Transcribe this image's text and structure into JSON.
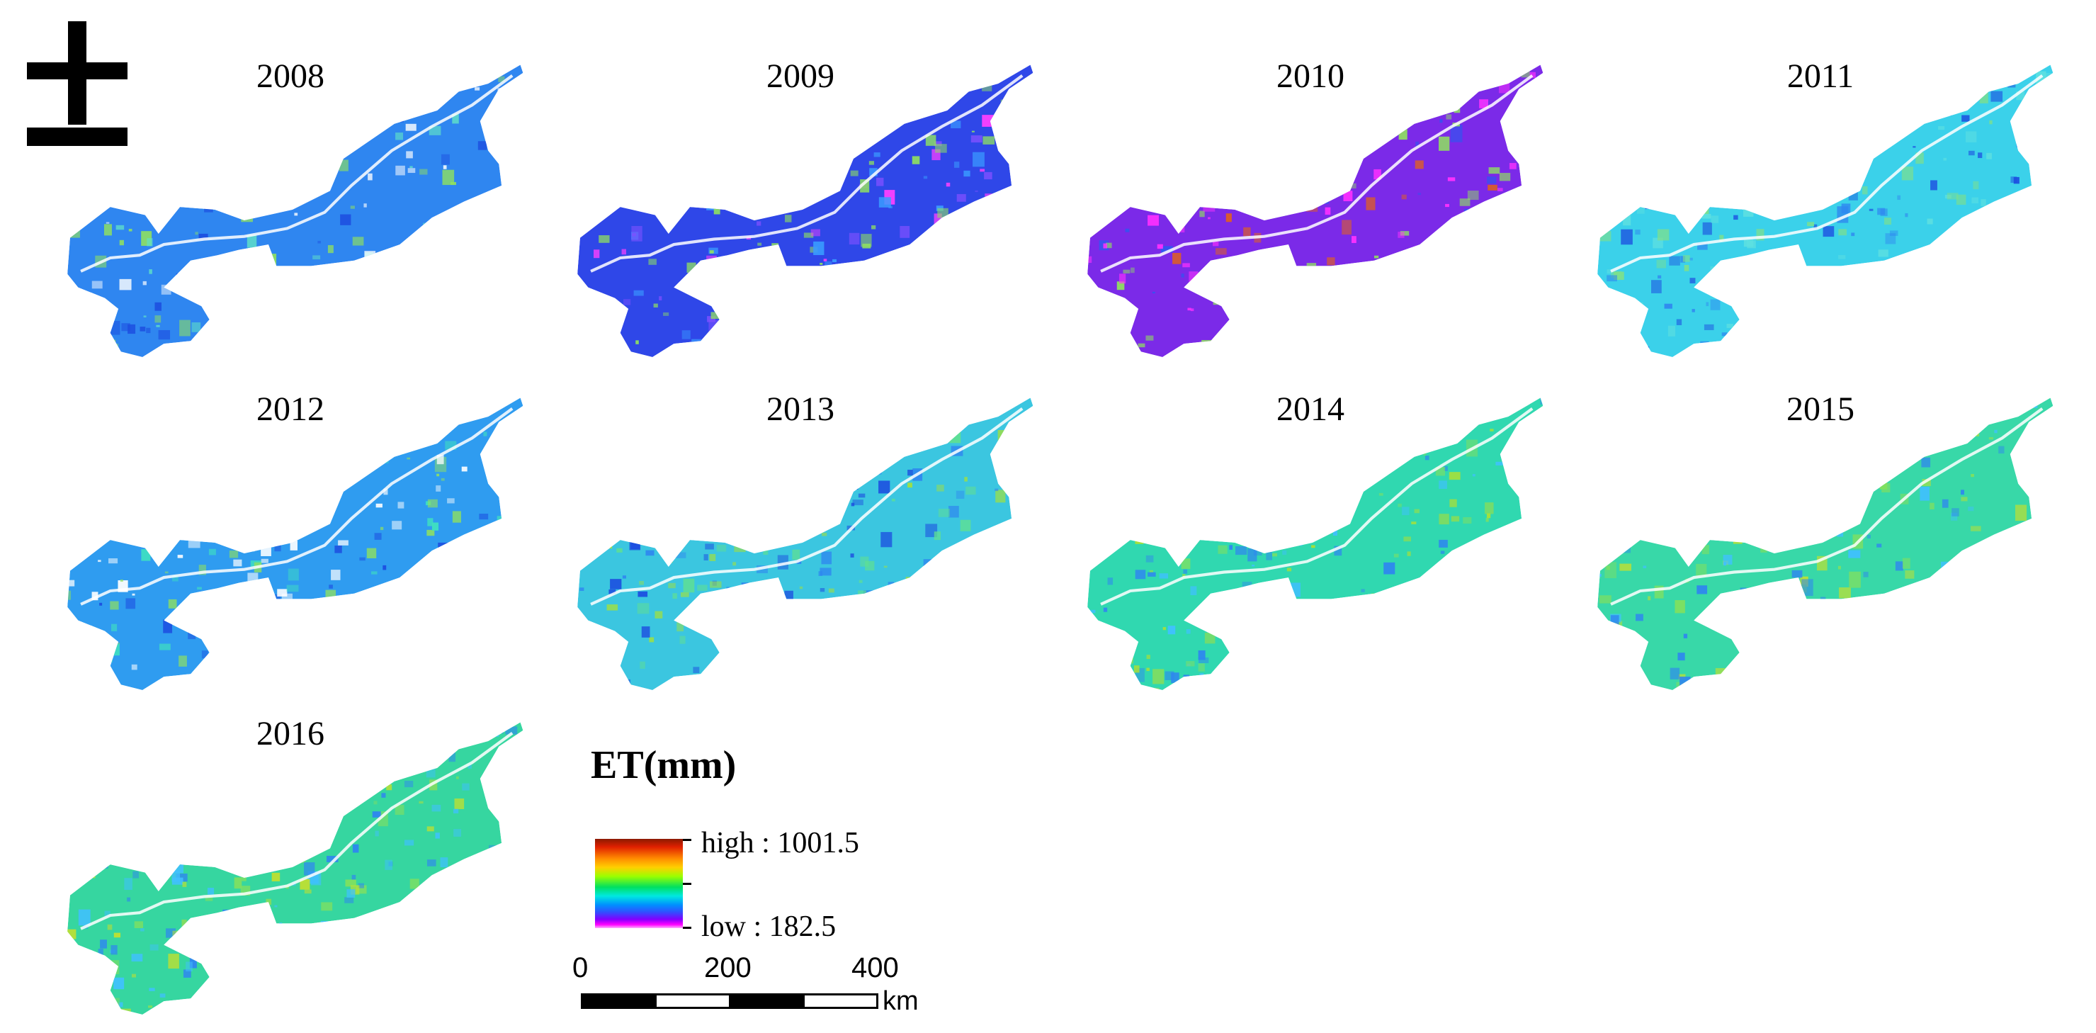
{
  "north_arrow": {
    "icon": "north-arrow-icon"
  },
  "panels": [
    {
      "year": "2008",
      "base": "#2f86f0",
      "speckle": [
        "#5fe0c8",
        "#8fe060",
        "#1d4fe0",
        "#ffffff"
      ]
    },
    {
      "year": "2009",
      "base": "#2f47e8",
      "speckle": [
        "#3a9bff",
        "#7d50ff",
        "#ff40ff",
        "#8fe060"
      ]
    },
    {
      "year": "2010",
      "base": "#7b2ae8",
      "speckle": [
        "#ff30ff",
        "#2f57f0",
        "#8fe060",
        "#e06020"
      ]
    },
    {
      "year": "2011",
      "base": "#3bd1ea",
      "speckle": [
        "#2f86f0",
        "#5ee0e0",
        "#7fe08a",
        "#1d4fe0"
      ]
    },
    {
      "year": "2012",
      "base": "#2f9cf0",
      "speckle": [
        "#3fe0c0",
        "#8fe060",
        "#1d4fe0",
        "#ffffff"
      ]
    },
    {
      "year": "2013",
      "base": "#3bc6e0",
      "speckle": [
        "#2f86f0",
        "#60e090",
        "#a0e040",
        "#1d4fe0"
      ]
    },
    {
      "year": "2014",
      "base": "#30d8b0",
      "speckle": [
        "#40c0ff",
        "#80e060",
        "#2f86f0",
        "#b0e030"
      ]
    },
    {
      "year": "2015",
      "base": "#38d8a8",
      "speckle": [
        "#80e060",
        "#2f86f0",
        "#c0e030",
        "#40c0ff"
      ]
    },
    {
      "year": "2016",
      "base": "#36d6a0",
      "speckle": [
        "#80e060",
        "#2f86f0",
        "#c0e030",
        "#40c0ff"
      ]
    }
  ],
  "legend": {
    "title": "ET(mm)",
    "high_label": "high : 1001.5",
    "low_label": "low : 182.5"
  },
  "scale": {
    "labels": [
      "0",
      "200",
      "400"
    ],
    "unit": "km",
    "segments": 4
  }
}
